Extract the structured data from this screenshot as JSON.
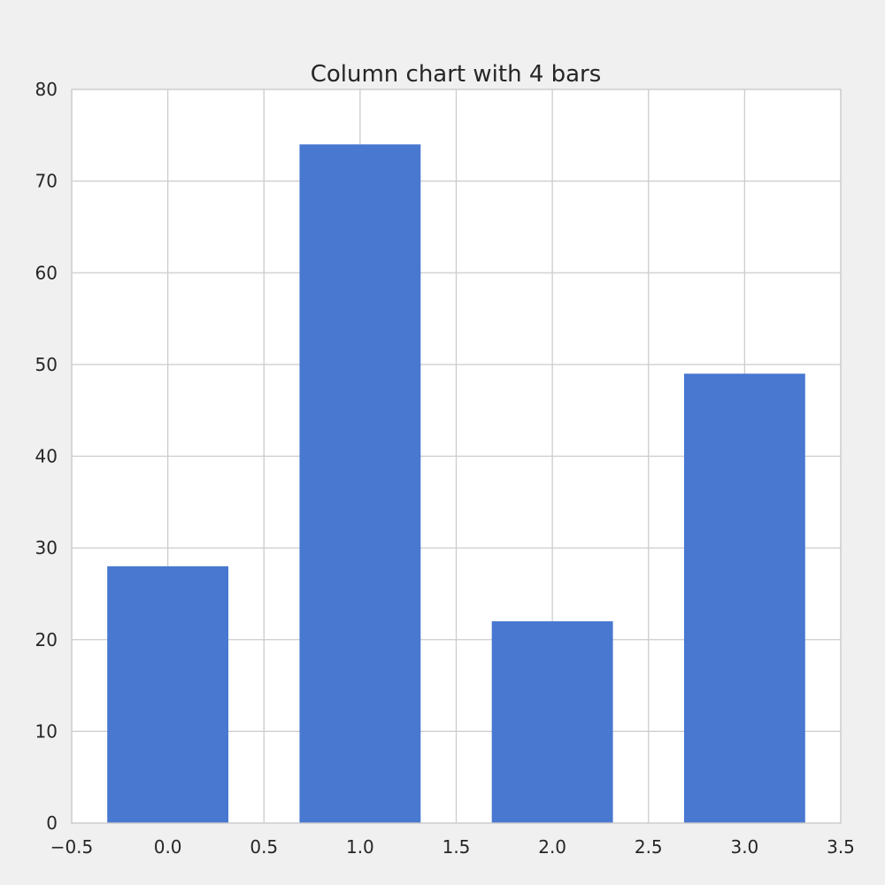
{
  "chart_data": {
    "type": "bar",
    "title": "Column chart with 4 bars",
    "xlabel": "",
    "ylabel": "",
    "x": [
      0,
      1,
      2,
      3
    ],
    "values": [
      28,
      74,
      22,
      49
    ],
    "bar_width": 0.63,
    "xlim": [
      -0.5,
      3.5
    ],
    "ylim": [
      0,
      80
    ],
    "x_ticks": [
      -0.5,
      0.0,
      0.5,
      1.0,
      1.5,
      2.0,
      2.5,
      3.0,
      3.5
    ],
    "x_tick_labels": [
      "−0.5",
      "0.0",
      "0.5",
      "1.0",
      "1.5",
      "2.0",
      "2.5",
      "3.0",
      "3.5"
    ],
    "y_ticks": [
      0,
      10,
      20,
      30,
      40,
      50,
      60,
      70,
      80
    ],
    "y_tick_labels": [
      "0",
      "10",
      "20",
      "30",
      "40",
      "50",
      "60",
      "70",
      "80"
    ],
    "grid": true,
    "legend": "none",
    "colors": {
      "bar": "#4878d0",
      "figure_background": "#f0f0f0",
      "plot_background": "#ffffff",
      "grid": "#cccccc",
      "spine": "#cccccc",
      "text": "#262626"
    }
  }
}
